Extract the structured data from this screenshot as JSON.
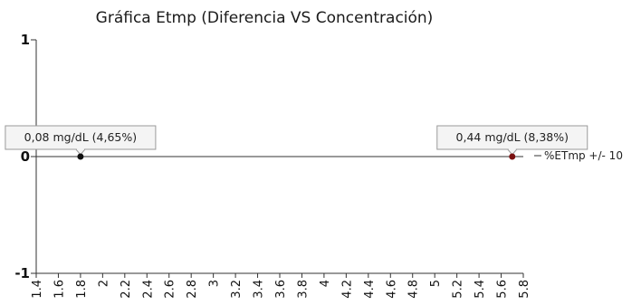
{
  "chart_data": {
    "type": "scatter",
    "title": "Gráfica Etmp (Diferencia VS Concentración)",
    "xlabel": "",
    "ylabel": "",
    "xlim": [
      1.4,
      5.8
    ],
    "ylim": [
      -1,
      1
    ],
    "x_ticks": [
      "1.4",
      "1.6",
      "1.8",
      "2",
      "2.2",
      "2.4",
      "2.6",
      "2.8",
      "3",
      "3.2",
      "3.4",
      "3.6",
      "3.8",
      "4",
      "4.2",
      "4.4",
      "4.6",
      "4.8",
      "5",
      "5.2",
      "5.4",
      "5.6",
      "5.8"
    ],
    "x_tick_values": [
      1.4,
      1.6,
      1.8,
      2.0,
      2.2,
      2.4,
      2.6,
      2.8,
      3.0,
      3.2,
      3.4,
      3.6,
      3.8,
      4.0,
      4.2,
      4.4,
      4.6,
      4.8,
      5.0,
      5.2,
      5.4,
      5.6,
      5.8
    ],
    "y_ticks": [
      "1",
      "0",
      "-1"
    ],
    "y_tick_values": [
      1,
      0,
      -1
    ],
    "grid": false,
    "legend": {
      "label": "%ETmp +/- 10",
      "placement": "right"
    },
    "points": [
      {
        "x": 1.8,
        "y": 0,
        "label": "0,08 mg/dL (4,65%)",
        "color": "#111111"
      },
      {
        "x": 5.7,
        "y": 0,
        "label": "0,44 mg/dL (8,38%)",
        "color": "#7a1010"
      }
    ],
    "reference_line": {
      "y": 0,
      "color": "#333333"
    }
  }
}
